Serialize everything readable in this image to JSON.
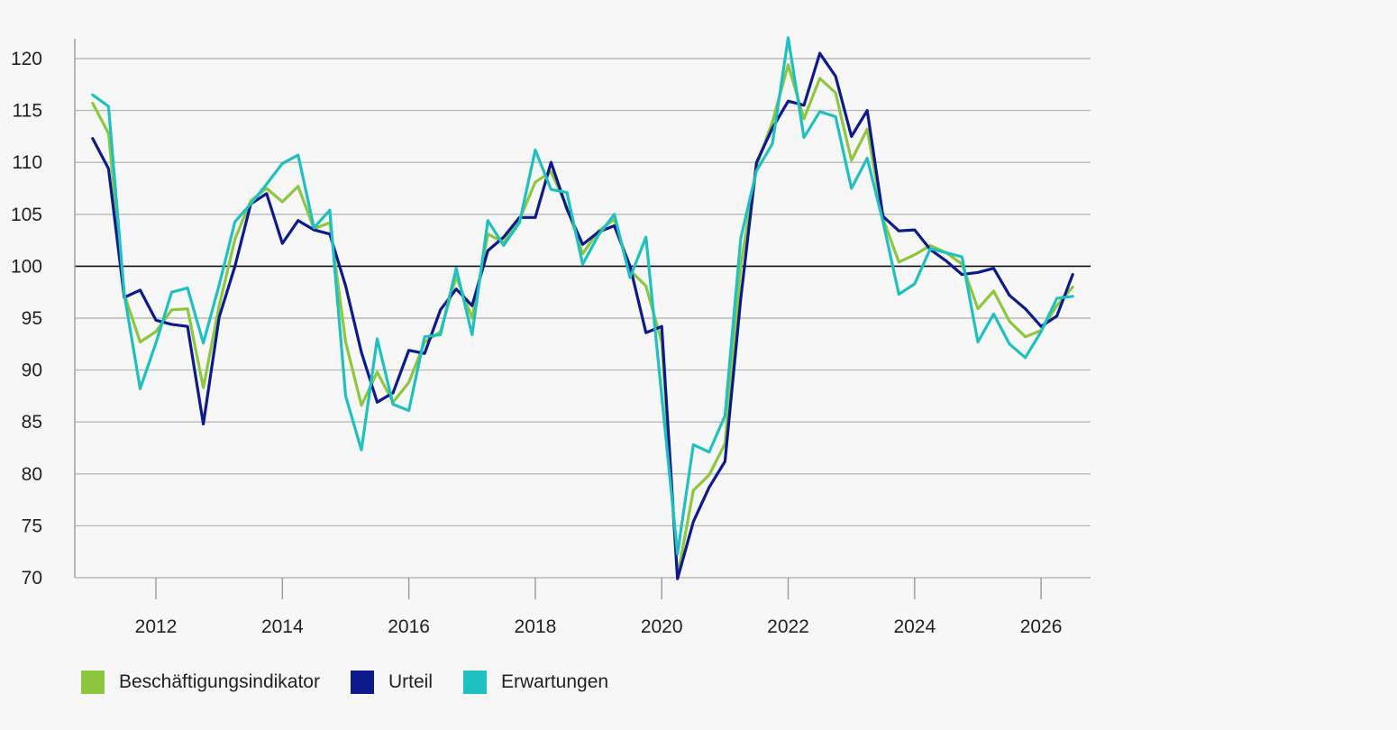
{
  "chart_data": {
    "type": "line",
    "title": "",
    "xlabel": "",
    "ylabel": "",
    "xlim": [
      2010.7,
      2026.8
    ],
    "ylim": [
      70,
      122
    ],
    "yticks": [
      70,
      75,
      80,
      85,
      90,
      95,
      100,
      105,
      110,
      115,
      120
    ],
    "xticks": [
      2012,
      2014,
      2016,
      2018,
      2020,
      2022,
      2024,
      2026
    ],
    "ytick_labels": [
      "70",
      "75",
      "80",
      "85",
      "90",
      "95",
      "100",
      "105",
      "110",
      "115",
      "120"
    ],
    "xtick_labels": [
      "2012",
      "2014",
      "2016",
      "2018",
      "2020",
      "2022",
      "2024",
      "2026"
    ],
    "reference_line": 100,
    "grid": "horizontal",
    "legend_position": "bottom-left",
    "x": [
      2011.0,
      2011.25,
      2011.5,
      2011.75,
      2012.0,
      2012.25,
      2012.5,
      2012.75,
      2013.0,
      2013.25,
      2013.5,
      2013.75,
      2014.0,
      2014.25,
      2014.5,
      2014.75,
      2015.0,
      2015.25,
      2015.5,
      2015.75,
      2016.0,
      2016.25,
      2016.5,
      2016.75,
      2017.0,
      2017.25,
      2017.5,
      2017.75,
      2018.0,
      2018.25,
      2018.5,
      2018.75,
      2019.0,
      2019.25,
      2019.5,
      2019.75,
      2020.0,
      2020.25,
      2020.5,
      2020.75,
      2021.0,
      2021.25,
      2021.5,
      2021.75,
      2022.0,
      2022.25,
      2022.5,
      2022.75,
      2023.0,
      2023.25,
      2023.5,
      2023.75,
      2024.0,
      2024.25,
      2024.5,
      2024.75,
      2025.0,
      2025.25,
      2025.5,
      2025.75,
      2026.0,
      2026.25,
      2026.5
    ],
    "series": [
      {
        "name": "Beschäftigungsindikator",
        "color": "#8dc63f",
        "values": [
          115.7,
          112.8,
          97.3,
          92.7,
          93.7,
          95.8,
          95.9,
          88.3,
          96.2,
          102.6,
          106.3,
          107.5,
          106.2,
          107.7,
          103.6,
          104.2,
          92.7,
          86.6,
          89.8,
          86.9,
          88.8,
          92.7,
          93.7,
          99.0,
          95.0,
          103.1,
          102.3,
          104.5,
          108.1,
          109.1,
          105.7,
          101.2,
          103.4,
          104.5,
          99.6,
          98.1,
          92.7,
          70.1,
          78.4,
          79.9,
          82.9,
          100.0,
          109.7,
          113.9,
          119.4,
          114.2,
          118.1,
          116.7,
          110.2,
          113.2,
          104.6,
          100.4,
          101.1,
          102.0,
          101.3,
          100.2,
          95.9,
          97.6,
          94.7,
          93.2,
          93.8,
          96.2,
          98.0
        ]
      },
      {
        "name": "Urteil",
        "color": "#0d1a8c",
        "values": [
          112.3,
          109.4,
          97.0,
          97.7,
          94.8,
          94.4,
          94.2,
          84.8,
          95.1,
          100.0,
          106.0,
          107.0,
          102.2,
          104.4,
          103.5,
          103.1,
          98.1,
          91.7,
          86.9,
          87.8,
          91.9,
          91.6,
          95.8,
          97.8,
          96.2,
          101.5,
          102.8,
          104.7,
          104.7,
          110.0,
          105.5,
          102.1,
          103.3,
          103.9,
          100.0,
          93.6,
          94.2,
          69.9,
          75.4,
          78.7,
          81.2,
          96.9,
          110.0,
          113.3,
          115.9,
          115.5,
          120.5,
          118.3,
          112.5,
          115.0,
          104.8,
          103.4,
          103.5,
          101.6,
          100.5,
          99.2,
          99.4,
          99.8,
          97.2,
          95.9,
          94.2,
          95.2,
          99.2
        ]
      },
      {
        "name": "Erwartungen",
        "color": "#1fc0c0",
        "values": [
          116.5,
          115.4,
          97.3,
          88.2,
          92.6,
          97.5,
          97.9,
          92.6,
          98.2,
          104.3,
          106.0,
          107.9,
          109.9,
          110.7,
          103.7,
          105.4,
          87.5,
          82.3,
          93.0,
          86.7,
          86.1,
          93.2,
          93.4,
          99.8,
          93.4,
          104.4,
          102.0,
          104.2,
          111.2,
          107.4,
          107.1,
          100.2,
          103.0,
          105.0,
          98.9,
          102.8,
          87.5,
          72.3,
          82.8,
          82.1,
          85.6,
          102.7,
          109.2,
          111.8,
          122.0,
          112.4,
          114.9,
          114.4,
          107.5,
          110.4,
          104.3,
          97.3,
          98.3,
          101.7,
          101.3,
          100.9,
          92.7,
          95.4,
          92.5,
          91.2,
          93.7,
          96.9,
          97.1
        ]
      }
    ]
  }
}
